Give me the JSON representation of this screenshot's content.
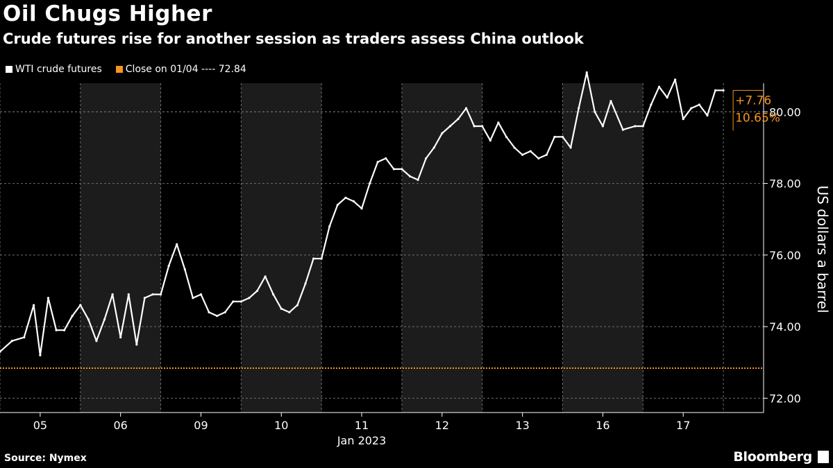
{
  "header": {
    "title": "Oil Chugs Higher",
    "subtitle": "Crude futures rise for another session as traders assess China outlook"
  },
  "legend": {
    "series_label": "WTI crude futures",
    "reference_label": "Close on 01/04 ---- 72.84"
  },
  "footer": {
    "source": "Source: Nymex",
    "brand": "Bloomberg"
  },
  "colors": {
    "background": "#000000",
    "series": "#ffffff",
    "reference": "#f5951e",
    "shade": "#1c1c1c",
    "grid": "#6f6f6f"
  },
  "chart_data": {
    "type": "line",
    "title": "Oil Chugs Higher",
    "subtitle": "Crude futures rise for another session as traders assess China outlook",
    "ylabel": "US dollars a barrel",
    "xlabel": "Jan 2023",
    "ylim": [
      71.6,
      80.8
    ],
    "yticks": [
      72.0,
      74.0,
      76.0,
      78.0,
      80.0
    ],
    "ytick_labels": [
      "72.00",
      "74.00",
      "76.00",
      "78.00",
      "80.00"
    ],
    "categories": [
      "05",
      "06",
      "09",
      "10",
      "11",
      "12",
      "13",
      "16",
      "17"
    ],
    "shaded_sessions": [
      "06",
      "10",
      "12",
      "16"
    ],
    "grid": true,
    "legend_position": "top-left",
    "reference_line": {
      "label": "Close on 01/04",
      "value": 72.84
    },
    "change_annotation": {
      "absolute": "+7.76",
      "percent": "10.65%"
    },
    "series": [
      {
        "name": "WTI crude futures",
        "x": [
          0.0,
          0.15,
          0.3,
          0.42,
          0.5,
          0.6,
          0.7,
          0.8,
          0.9,
          1.0,
          1.0,
          1.1,
          1.2,
          1.3,
          1.4,
          1.5,
          1.6,
          1.7,
          1.8,
          1.9,
          2.0,
          2.1,
          2.2,
          2.3,
          2.4,
          2.5,
          2.6,
          2.7,
          2.8,
          2.9,
          3.0,
          3.1,
          3.2,
          3.3,
          3.4,
          3.5,
          3.6,
          3.7,
          3.8,
          3.9,
          4.0,
          4.1,
          4.2,
          4.3,
          4.4,
          4.5,
          4.6,
          4.7,
          4.8,
          4.9,
          5.0,
          5.1,
          5.2,
          5.3,
          5.4,
          5.5,
          5.6,
          5.7,
          5.8,
          5.9,
          6.0,
          6.1,
          6.2,
          6.3,
          6.4,
          6.5,
          6.6,
          6.7,
          6.8,
          6.9,
          7.0,
          7.1,
          7.2,
          7.3,
          7.4,
          7.5,
          7.6,
          7.75,
          7.9,
          8.0,
          8.1,
          8.2,
          8.3,
          8.4,
          8.5,
          8.6,
          8.7,
          8.8,
          8.9,
          9.0
        ],
        "values": [
          73.3,
          73.6,
          73.7,
          74.6,
          73.2,
          74.8,
          73.9,
          73.9,
          74.3,
          74.6,
          74.6,
          74.2,
          73.6,
          74.2,
          74.9,
          73.7,
          74.9,
          73.5,
          74.8,
          74.9,
          74.9,
          75.7,
          76.3,
          75.6,
          74.8,
          74.9,
          74.4,
          74.3,
          74.4,
          74.7,
          74.7,
          74.8,
          75.0,
          75.4,
          74.9,
          74.5,
          74.4,
          74.6,
          75.2,
          75.9,
          75.9,
          76.8,
          77.4,
          77.6,
          77.5,
          77.3,
          78.0,
          78.6,
          78.7,
          78.4,
          78.4,
          78.2,
          78.1,
          78.7,
          79.0,
          79.4,
          79.6,
          79.8,
          80.1,
          79.6,
          79.6,
          79.2,
          79.7,
          79.3,
          79.0,
          78.8,
          78.9,
          78.7,
          78.8,
          79.3,
          79.3,
          79.0,
          80.1,
          81.1,
          80.0,
          79.6,
          80.3,
          79.5,
          79.6,
          79.6,
          80.2,
          80.7,
          80.4,
          80.9,
          79.8,
          80.1,
          80.2,
          79.9,
          80.6,
          80.6
        ]
      }
    ]
  }
}
